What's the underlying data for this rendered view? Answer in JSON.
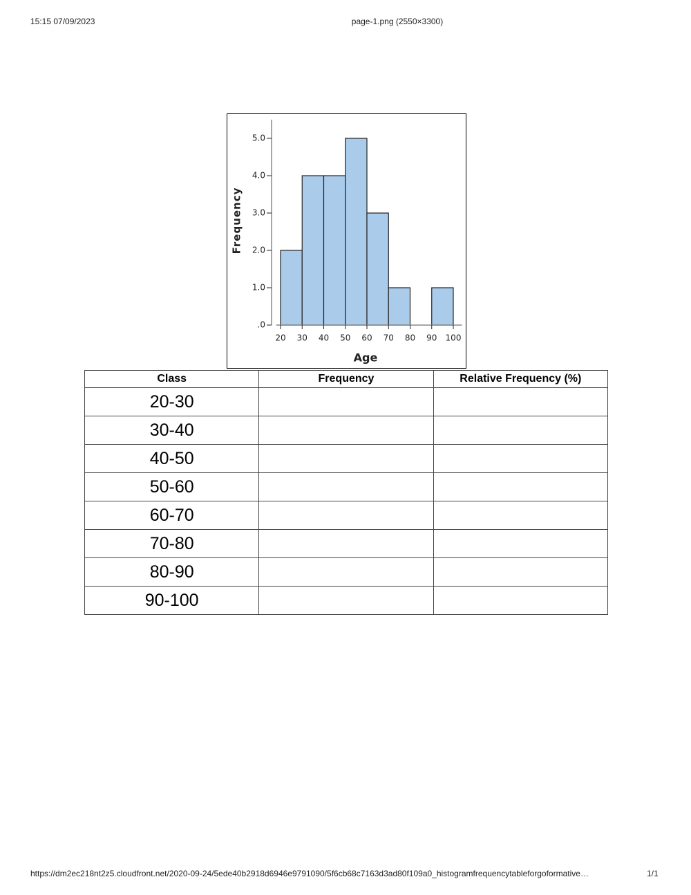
{
  "header": {
    "left": "15:15 07/09/2023",
    "center": "page-1.png (2550×3300)"
  },
  "chart_data": {
    "type": "histogram",
    "xlabel": "Age",
    "ylabel": "Frequency",
    "bins": [
      20,
      30,
      40,
      50,
      60,
      70,
      80,
      90,
      100
    ],
    "values": [
      2,
      4,
      4,
      5,
      3,
      1,
      0,
      1
    ],
    "color": "#abcbeb",
    "xlim": [
      18,
      104
    ],
    "xticks": [
      20,
      30,
      40,
      50,
      60,
      70,
      80,
      90,
      100
    ],
    "ylim": [
      0,
      5.5
    ],
    "yticks": [
      {
        "value": 0,
        "label": ".0"
      },
      {
        "value": 1,
        "label": "1.0"
      },
      {
        "value": 2,
        "label": "2.0"
      },
      {
        "value": 3,
        "label": "3.0"
      },
      {
        "value": 4,
        "label": "4.0"
      },
      {
        "value": 5,
        "label": "5.0"
      }
    ],
    "grid": false
  },
  "table": {
    "columns": [
      "Class",
      "Frequency",
      "Relative Frequency (%)"
    ],
    "rows": [
      "20-30",
      "30-40",
      "40-50",
      "50-60",
      "60-70",
      "70-80",
      "80-90",
      "90-100"
    ]
  },
  "footer": {
    "url": "https://dm2ec218nt2z5.cloudfront.net/2020-09-24/5ede40b2918d6946e9791090/5f6cb68c7163d3ad80f109a0_histogramfrequencytableforgoformative…",
    "page": "1/1"
  }
}
